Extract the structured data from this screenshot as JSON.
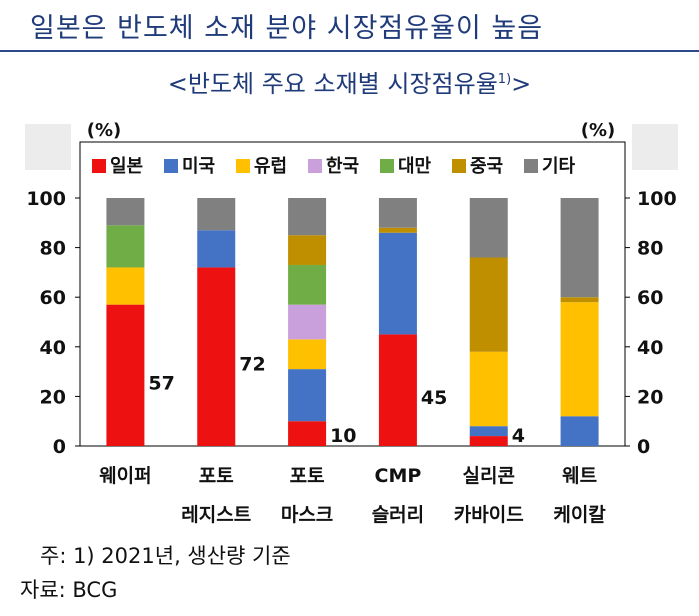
{
  "page_title": "일본은 반도체 소재 분야 시장점유율이 높음",
  "chart_title": "<반도체 주요 소재별 시장점유율",
  "chart_title_sup": "1)",
  "chart_title_end": ">",
  "notes": {
    "note": "주:  1) 2021년, 생산량 기준",
    "source": "자료: BCG"
  },
  "chart_data": {
    "type": "bar",
    "stacked": true,
    "title": "<반도체 주요 소재별 시장점유율1)>",
    "ylabel_left": "(%)",
    "ylabel_right": "(%)",
    "ylim": [
      0,
      100
    ],
    "yticks": [
      0,
      20,
      40,
      60,
      80,
      100
    ],
    "grid": false,
    "legend_position": "top",
    "categories": [
      [
        "웨이퍼"
      ],
      [
        "포토",
        "레지스트"
      ],
      [
        "포토",
        "마스크"
      ],
      [
        "CMP",
        "슬러리"
      ],
      [
        "실리콘",
        "카바이드"
      ],
      [
        "웨트",
        "케이칼"
      ]
    ],
    "series": [
      {
        "name": "일본",
        "color": "#ee1111",
        "values": [
          57,
          72,
          10,
          45,
          4,
          0
        ]
      },
      {
        "name": "미국",
        "color": "#4472c4",
        "values": [
          0,
          15,
          21,
          41,
          4,
          12
        ]
      },
      {
        "name": "유럽",
        "color": "#ffc000",
        "values": [
          15,
          0,
          12,
          0,
          30,
          46
        ]
      },
      {
        "name": "한국",
        "color": "#c9a0dc",
        "values": [
          0,
          0,
          14,
          0,
          0,
          0
        ]
      },
      {
        "name": "대만",
        "color": "#70ad47",
        "values": [
          17,
          0,
          16,
          0,
          0,
          0
        ]
      },
      {
        "name": "중국",
        "color": "#bf8f00",
        "values": [
          0,
          0,
          12,
          2,
          38,
          2
        ]
      },
      {
        "name": "기타",
        "color": "#808080",
        "values": [
          11,
          13,
          15,
          12,
          24,
          40
        ]
      }
    ],
    "data_labels": [
      {
        "category_index": 0,
        "value": "57"
      },
      {
        "category_index": 1,
        "value": "72"
      },
      {
        "category_index": 2,
        "value": "10"
      },
      {
        "category_index": 3,
        "value": "45"
      },
      {
        "category_index": 4,
        "value": "4"
      }
    ]
  }
}
